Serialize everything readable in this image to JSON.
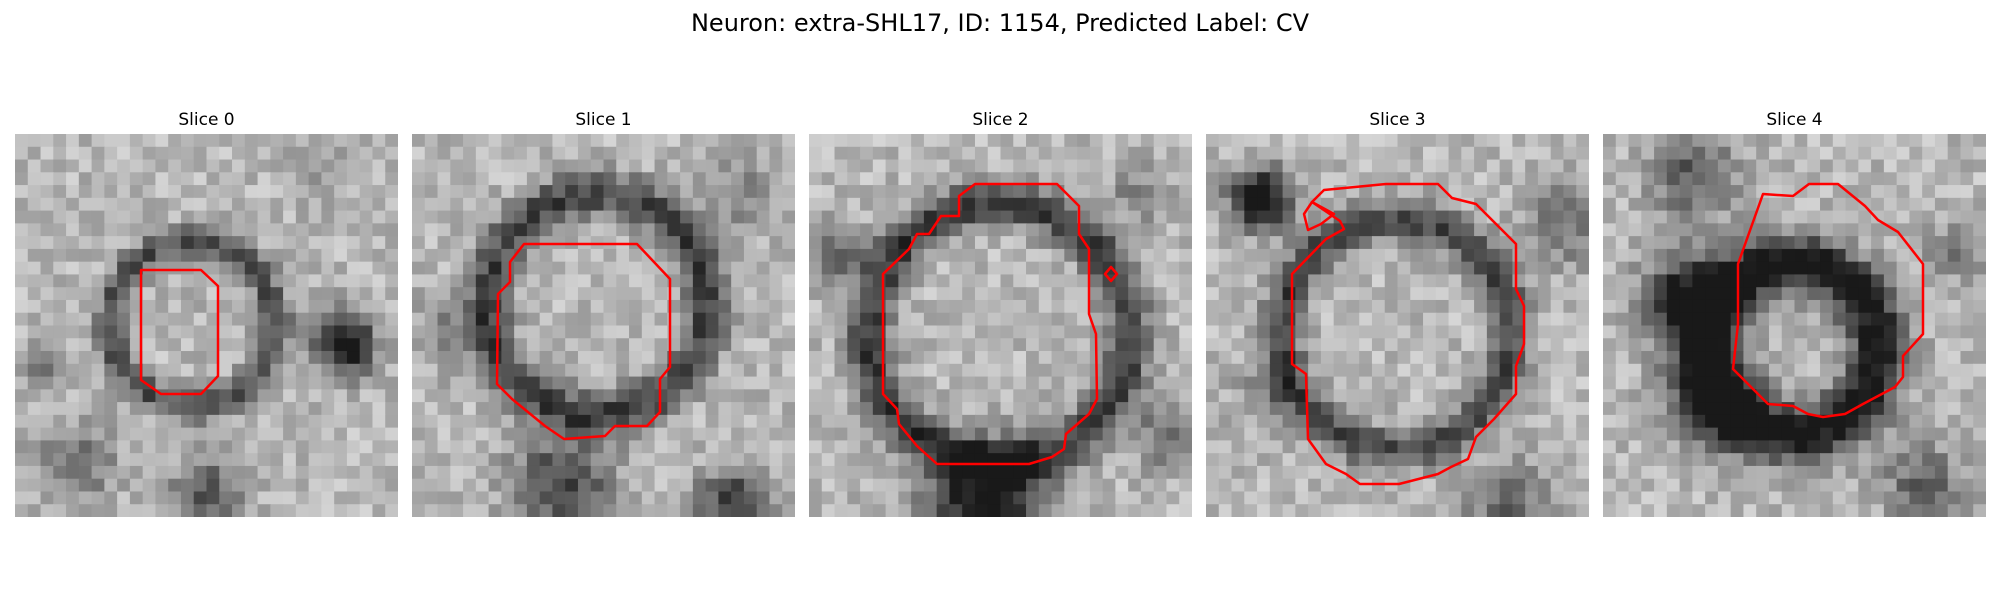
{
  "figure": {
    "title": "Neuron: extra-SHL17, ID: 1154, Predicted Label: CV"
  },
  "panels": [
    {
      "title": "Slice 0"
    },
    {
      "title": "Slice 1"
    },
    {
      "title": "Slice 2"
    },
    {
      "title": "Slice 3"
    },
    {
      "title": "Slice 4"
    }
  ],
  "colors": {
    "contour": "#ff0000",
    "membrane": "#4a4a4a",
    "background": "#d2d2d2"
  }
}
